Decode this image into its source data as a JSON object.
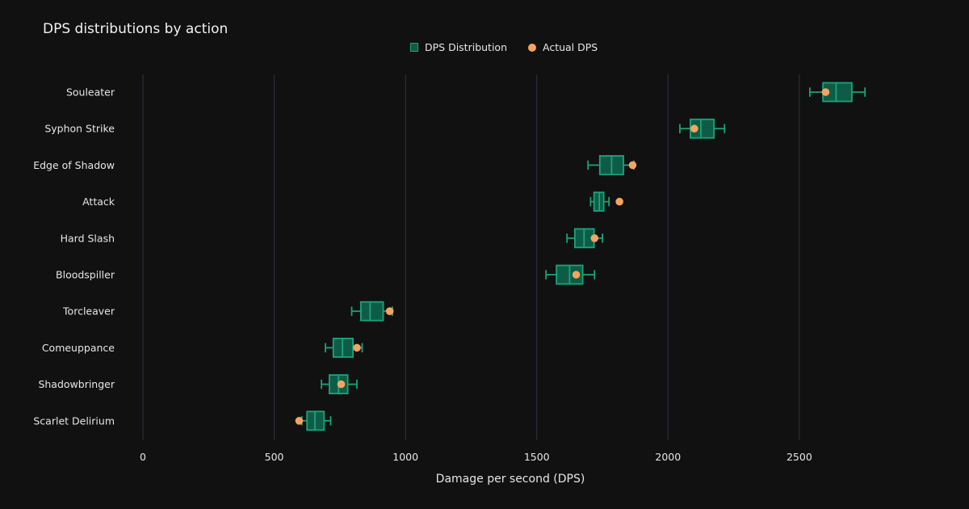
{
  "chart_data": {
    "type": "box",
    "title": "DPS distributions by action",
    "xlabel": "Damage per second (DPS)",
    "ylabel": "",
    "xlim": [
      0,
      3140
    ],
    "xticks": [
      0,
      500,
      1000,
      1500,
      2000,
      2500
    ],
    "xtick_labels": [
      "0",
      "500",
      "1000",
      "1500",
      "2000",
      "2500"
    ],
    "grid": true,
    "legend": {
      "placement": "top-center",
      "entries": [
        "DPS Distribution",
        "Actual DPS"
      ]
    },
    "colors": {
      "background": "#111111",
      "box_fill": "#0e5c47",
      "box_line": "#1aa37a",
      "marker": "#f4a460",
      "grid": "#2e3440"
    },
    "categories": [
      "Souleater",
      "Syphon Strike",
      "Edge of Shadow",
      "Attack",
      "Hard Slash",
      "Bloodspiller",
      "Torcleaver",
      "Comeuppance",
      "Shadowbringer",
      "Scarlet Delirium"
    ],
    "series": [
      {
        "name": "DPS Distribution",
        "type": "box",
        "boxes": [
          {
            "min": 2540,
            "q1": 2590,
            "median": 2640,
            "q3": 2700,
            "max": 2750
          },
          {
            "min": 2045,
            "q1": 2085,
            "median": 2125,
            "q3": 2175,
            "max": 2215
          },
          {
            "min": 1695,
            "q1": 1740,
            "median": 1785,
            "q3": 1830,
            "max": 1870
          },
          {
            "min": 1705,
            "q1": 1718,
            "median": 1738,
            "q3": 1755,
            "max": 1775
          },
          {
            "min": 1615,
            "q1": 1645,
            "median": 1680,
            "q3": 1718,
            "max": 1750
          },
          {
            "min": 1535,
            "q1": 1575,
            "median": 1625,
            "q3": 1675,
            "max": 1720
          },
          {
            "min": 795,
            "q1": 830,
            "median": 865,
            "q3": 915,
            "max": 950
          },
          {
            "min": 695,
            "q1": 725,
            "median": 760,
            "q3": 800,
            "max": 835
          },
          {
            "min": 680,
            "q1": 710,
            "median": 745,
            "q3": 780,
            "max": 815
          },
          {
            "min": 605,
            "q1": 625,
            "median": 655,
            "q3": 690,
            "max": 715
          }
        ]
      },
      {
        "name": "Actual DPS",
        "type": "scatter",
        "values": [
          2600,
          2100,
          1865,
          1815,
          1720,
          1650,
          940,
          815,
          755,
          595
        ]
      }
    ]
  }
}
